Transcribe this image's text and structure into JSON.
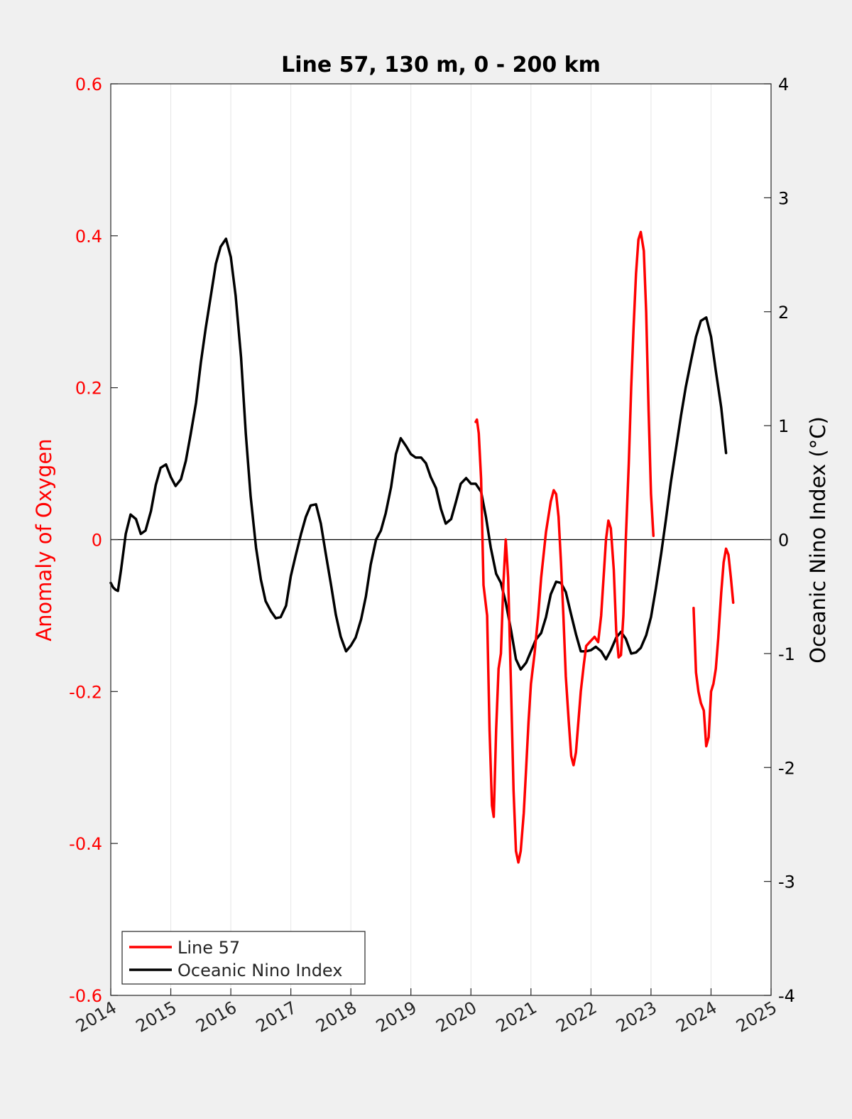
{
  "chart_data": {
    "type": "line",
    "title": "Line 57, 130 m, 0 - 200 km",
    "xlabel": "",
    "ylabel_left": "Anomaly of Oxygen",
    "ylabel_right": "Oceanic Nino Index (°C)",
    "xlim": [
      2014,
      2025
    ],
    "ylim_left": [
      -0.6,
      0.6
    ],
    "ylim_right": [
      -4,
      4
    ],
    "x_ticks": [
      "2014",
      "2015",
      "2016",
      "2017",
      "2018",
      "2019",
      "2020",
      "2021",
      "2022",
      "2023",
      "2024",
      "2025"
    ],
    "y_ticks_left": [
      "-0.6",
      "-0.4",
      "-0.2",
      "0",
      "0.2",
      "0.4",
      "0.6"
    ],
    "y_ticks_right": [
      "-4",
      "-3",
      "-2",
      "-1",
      "0",
      "1",
      "2",
      "3",
      "4"
    ],
    "grid": "vertical",
    "legend_position": "bottom-left",
    "colors": {
      "line57": "#ff0000",
      "oni": "#000000",
      "left_axis": "#ff0000",
      "right_axis": "#000000"
    },
    "series": [
      {
        "name": "Line 57",
        "axis": "left",
        "segments": [
          [
            [
              2020.08,
              0.155
            ],
            [
              2020.1,
              0.158
            ],
            [
              2020.13,
              0.14
            ],
            [
              2020.17,
              0.08
            ],
            [
              2020.21,
              -0.06
            ],
            [
              2020.27,
              -0.1
            ],
            [
              2020.31,
              -0.25
            ],
            [
              2020.35,
              -0.35
            ],
            [
              2020.38,
              -0.365
            ],
            [
              2020.42,
              -0.25
            ],
            [
              2020.46,
              -0.17
            ],
            [
              2020.5,
              -0.15
            ],
            [
              2020.54,
              -0.06
            ],
            [
              2020.58,
              0.0
            ],
            [
              2020.62,
              -0.05
            ],
            [
              2020.67,
              -0.2
            ],
            [
              2020.71,
              -0.33
            ],
            [
              2020.75,
              -0.41
            ],
            [
              2020.79,
              -0.425
            ],
            [
              2020.83,
              -0.41
            ],
            [
              2020.88,
              -0.36
            ],
            [
              2020.92,
              -0.3
            ],
            [
              2020.96,
              -0.24
            ],
            [
              2021.0,
              -0.19
            ],
            [
              2021.06,
              -0.15
            ],
            [
              2021.12,
              -0.1
            ],
            [
              2021.17,
              -0.05
            ],
            [
              2021.25,
              0.01
            ],
            [
              2021.33,
              0.05
            ],
            [
              2021.38,
              0.065
            ],
            [
              2021.42,
              0.06
            ],
            [
              2021.46,
              0.03
            ],
            [
              2021.5,
              -0.03
            ],
            [
              2021.54,
              -0.1
            ],
            [
              2021.58,
              -0.18
            ],
            [
              2021.63,
              -0.24
            ],
            [
              2021.67,
              -0.285
            ],
            [
              2021.71,
              -0.297
            ],
            [
              2021.75,
              -0.28
            ],
            [
              2021.79,
              -0.24
            ],
            [
              2021.83,
              -0.2
            ],
            [
              2021.88,
              -0.165
            ],
            [
              2021.92,
              -0.14
            ],
            [
              2022.0,
              -0.133
            ],
            [
              2022.06,
              -0.128
            ],
            [
              2022.12,
              -0.135
            ],
            [
              2022.17,
              -0.1
            ],
            [
              2022.21,
              -0.05
            ],
            [
              2022.25,
              0.0
            ],
            [
              2022.29,
              0.025
            ],
            [
              2022.33,
              0.015
            ],
            [
              2022.38,
              -0.04
            ],
            [
              2022.42,
              -0.12
            ],
            [
              2022.46,
              -0.155
            ],
            [
              2022.5,
              -0.152
            ],
            [
              2022.54,
              -0.1
            ],
            [
              2022.58,
              0.0
            ],
            [
              2022.63,
              0.1
            ],
            [
              2022.67,
              0.2
            ],
            [
              2022.71,
              0.28
            ],
            [
              2022.75,
              0.35
            ],
            [
              2022.79,
              0.395
            ],
            [
              2022.83,
              0.405
            ],
            [
              2022.88,
              0.38
            ],
            [
              2022.92,
              0.3
            ],
            [
              2022.96,
              0.17
            ],
            [
              2023.0,
              0.06
            ],
            [
              2023.04,
              0.005
            ]
          ],
          [
            [
              2023.71,
              -0.09
            ],
            [
              2023.75,
              -0.175
            ],
            [
              2023.79,
              -0.2
            ],
            [
              2023.83,
              -0.215
            ],
            [
              2023.88,
              -0.225
            ],
            [
              2023.92,
              -0.272
            ],
            [
              2023.96,
              -0.26
            ],
            [
              2024.0,
              -0.2
            ],
            [
              2024.04,
              -0.19
            ],
            [
              2024.08,
              -0.17
            ],
            [
              2024.12,
              -0.13
            ],
            [
              2024.17,
              -0.07
            ],
            [
              2024.21,
              -0.03
            ],
            [
              2024.25,
              -0.012
            ],
            [
              2024.29,
              -0.02
            ],
            [
              2024.33,
              -0.05
            ],
            [
              2024.37,
              -0.083
            ]
          ]
        ]
      },
      {
        "name": "Oceanic Nino Index",
        "axis": "right",
        "segments": [
          [
            [
              2014.0,
              -0.38
            ],
            [
              2014.04,
              -0.42
            ],
            [
              2014.08,
              -0.44
            ],
            [
              2014.12,
              -0.45
            ],
            [
              2014.17,
              -0.27
            ],
            [
              2014.25,
              0.05
            ],
            [
              2014.33,
              0.22
            ],
            [
              2014.42,
              0.18
            ],
            [
              2014.5,
              0.05
            ],
            [
              2014.58,
              0.08
            ],
            [
              2014.67,
              0.25
            ],
            [
              2014.75,
              0.48
            ],
            [
              2014.83,
              0.63
            ],
            [
              2014.92,
              0.66
            ],
            [
              2015.0,
              0.55
            ],
            [
              2015.08,
              0.47
            ],
            [
              2015.17,
              0.53
            ],
            [
              2015.25,
              0.69
            ],
            [
              2015.33,
              0.92
            ],
            [
              2015.42,
              1.2
            ],
            [
              2015.5,
              1.55
            ],
            [
              2015.58,
              1.85
            ],
            [
              2015.67,
              2.15
            ],
            [
              2015.75,
              2.42
            ],
            [
              2015.83,
              2.57
            ],
            [
              2015.92,
              2.64
            ],
            [
              2016.0,
              2.48
            ],
            [
              2016.08,
              2.14
            ],
            [
              2016.17,
              1.6
            ],
            [
              2016.25,
              0.93
            ],
            [
              2016.33,
              0.38
            ],
            [
              2016.42,
              -0.07
            ],
            [
              2016.5,
              -0.35
            ],
            [
              2016.58,
              -0.54
            ],
            [
              2016.67,
              -0.63
            ],
            [
              2016.75,
              -0.69
            ],
            [
              2016.83,
              -0.68
            ],
            [
              2016.92,
              -0.58
            ],
            [
              2017.0,
              -0.32
            ],
            [
              2017.08,
              -0.14
            ],
            [
              2017.17,
              0.05
            ],
            [
              2017.25,
              0.2
            ],
            [
              2017.33,
              0.3
            ],
            [
              2017.42,
              0.31
            ],
            [
              2017.5,
              0.14
            ],
            [
              2017.58,
              -0.12
            ],
            [
              2017.67,
              -0.4
            ],
            [
              2017.75,
              -0.66
            ],
            [
              2017.83,
              -0.85
            ],
            [
              2017.92,
              -0.98
            ],
            [
              2018.0,
              -0.93
            ],
            [
              2018.08,
              -0.86
            ],
            [
              2018.17,
              -0.7
            ],
            [
              2018.25,
              -0.5
            ],
            [
              2018.33,
              -0.22
            ],
            [
              2018.42,
              0.0
            ],
            [
              2018.5,
              0.08
            ],
            [
              2018.58,
              0.23
            ],
            [
              2018.67,
              0.46
            ],
            [
              2018.75,
              0.75
            ],
            [
              2018.83,
              0.89
            ],
            [
              2018.92,
              0.82
            ],
            [
              2019.0,
              0.75
            ],
            [
              2019.08,
              0.72
            ],
            [
              2019.17,
              0.72
            ],
            [
              2019.25,
              0.67
            ],
            [
              2019.33,
              0.55
            ],
            [
              2019.42,
              0.45
            ],
            [
              2019.5,
              0.27
            ],
            [
              2019.58,
              0.14
            ],
            [
              2019.67,
              0.18
            ],
            [
              2019.75,
              0.33
            ],
            [
              2019.83,
              0.49
            ],
            [
              2019.92,
              0.54
            ],
            [
              2020.0,
              0.49
            ],
            [
              2020.08,
              0.49
            ],
            [
              2020.17,
              0.42
            ],
            [
              2020.25,
              0.2
            ],
            [
              2020.33,
              -0.07
            ],
            [
              2020.42,
              -0.3
            ],
            [
              2020.5,
              -0.38
            ],
            [
              2020.58,
              -0.55
            ],
            [
              2020.67,
              -0.8
            ],
            [
              2020.75,
              -1.05
            ],
            [
              2020.83,
              -1.14
            ],
            [
              2020.92,
              -1.08
            ],
            [
              2021.0,
              -0.98
            ],
            [
              2021.08,
              -0.88
            ],
            [
              2021.17,
              -0.82
            ],
            [
              2021.25,
              -0.68
            ],
            [
              2021.33,
              -0.48
            ],
            [
              2021.42,
              -0.37
            ],
            [
              2021.5,
              -0.38
            ],
            [
              2021.58,
              -0.46
            ],
            [
              2021.67,
              -0.66
            ],
            [
              2021.75,
              -0.83
            ],
            [
              2021.83,
              -0.98
            ],
            [
              2021.92,
              -0.98
            ],
            [
              2022.0,
              -0.97
            ],
            [
              2022.08,
              -0.94
            ],
            [
              2022.17,
              -0.98
            ],
            [
              2022.25,
              -1.05
            ],
            [
              2022.33,
              -0.97
            ],
            [
              2022.42,
              -0.86
            ],
            [
              2022.5,
              -0.81
            ],
            [
              2022.58,
              -0.87
            ],
            [
              2022.67,
              -1.0
            ],
            [
              2022.75,
              -0.99
            ],
            [
              2022.83,
              -0.95
            ],
            [
              2022.92,
              -0.84
            ],
            [
              2023.0,
              -0.68
            ],
            [
              2023.08,
              -0.43
            ],
            [
              2023.17,
              -0.12
            ],
            [
              2023.25,
              0.18
            ],
            [
              2023.33,
              0.5
            ],
            [
              2023.42,
              0.81
            ],
            [
              2023.5,
              1.09
            ],
            [
              2023.58,
              1.34
            ],
            [
              2023.67,
              1.58
            ],
            [
              2023.75,
              1.78
            ],
            [
              2023.83,
              1.92
            ],
            [
              2023.92,
              1.95
            ],
            [
              2024.0,
              1.78
            ],
            [
              2024.08,
              1.48
            ],
            [
              2024.17,
              1.16
            ],
            [
              2024.25,
              0.76
            ]
          ]
        ]
      }
    ]
  }
}
